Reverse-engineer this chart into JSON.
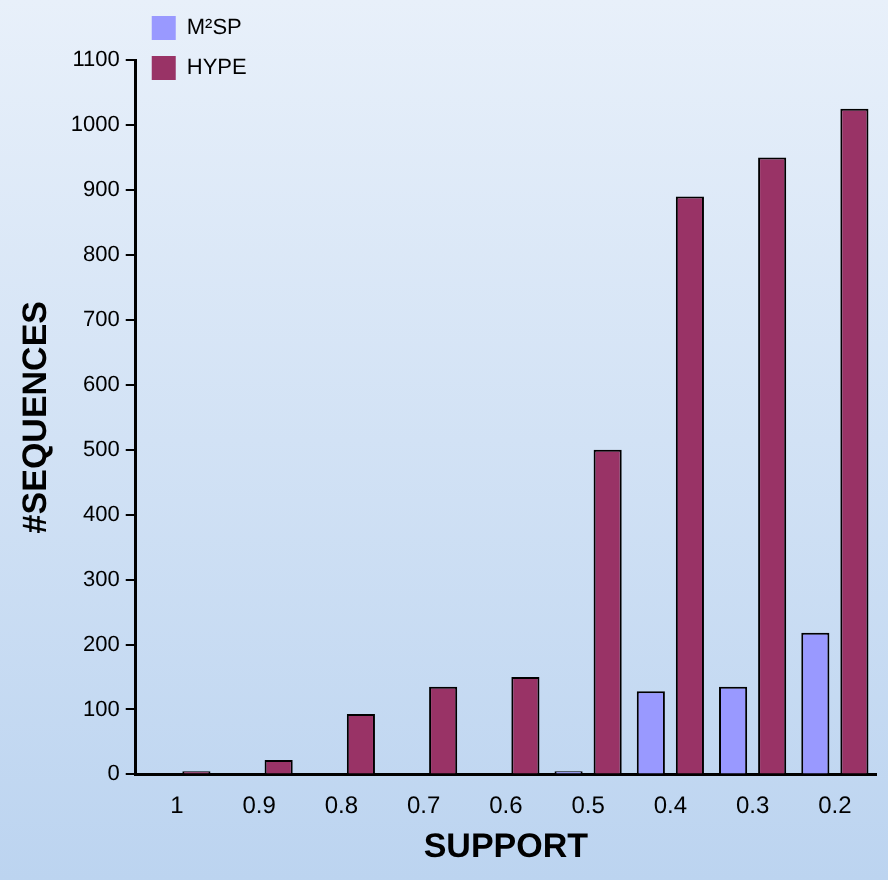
{
  "chart_data": {
    "type": "bar",
    "xlabel": "SUPPORT",
    "ylabel": "#SEQUENCES",
    "categories": [
      "1",
      "0.9",
      "0.8",
      "0.7",
      "0.6",
      "0.5",
      "0.4",
      "0.3",
      "0.2"
    ],
    "series": [
      {
        "name": "M²SP",
        "color": "#9999ff",
        "values": [
          0,
          0,
          0,
          0,
          0,
          5,
          128,
          135,
          218
        ]
      },
      {
        "name": "HYPE",
        "color": "#993366",
        "values": [
          5,
          22,
          93,
          135,
          150,
          500,
          890,
          950,
          1025
        ]
      }
    ],
    "ylim": [
      0,
      1100
    ],
    "yticks": [
      0,
      100,
      200,
      300,
      400,
      500,
      600,
      700,
      800,
      900,
      1000,
      1100
    ],
    "grid": false,
    "legend": "left"
  }
}
